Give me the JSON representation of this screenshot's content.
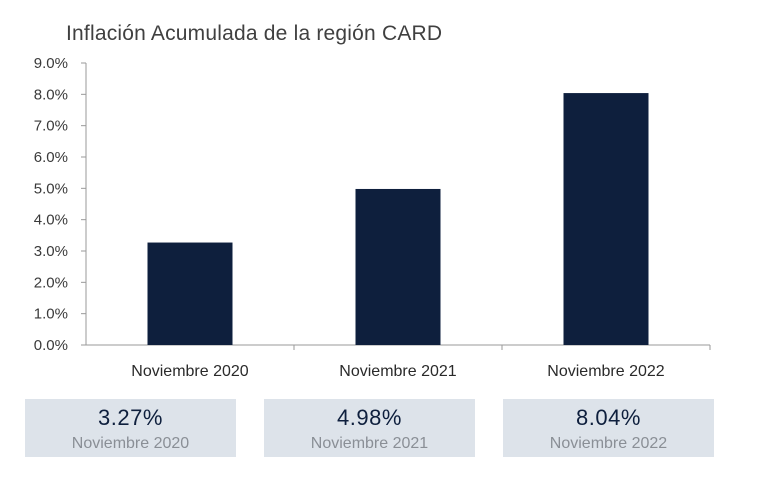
{
  "title": "Inflación Acumulada de la región CARD",
  "colors": {
    "bar": "#0e1f3d",
    "card_bg": "#dde3ea",
    "axis": "#9a9a9a"
  },
  "chart_data": {
    "type": "bar",
    "title": "Inflación Acumulada de la región CARD",
    "categories": [
      "Noviembre 2020",
      "Noviembre 2021",
      "Noviembre 2022"
    ],
    "values": [
      3.27,
      4.98,
      8.04
    ],
    "ylim": [
      0,
      9
    ],
    "y_ticks": [
      "0.0%",
      "1.0%",
      "2.0%",
      "3.0%",
      "4.0%",
      "5.0%",
      "6.0%",
      "7.0%",
      "8.0%",
      "9.0%"
    ],
    "xlabel": "",
    "ylabel": "",
    "grid": false,
    "legend": "none"
  },
  "summary_cards": [
    {
      "value": "3.27%",
      "label": "Noviembre 2020"
    },
    {
      "value": "4.98%",
      "label": "Noviembre 2021"
    },
    {
      "value": "8.04%",
      "label": "Noviembre 2022"
    }
  ]
}
